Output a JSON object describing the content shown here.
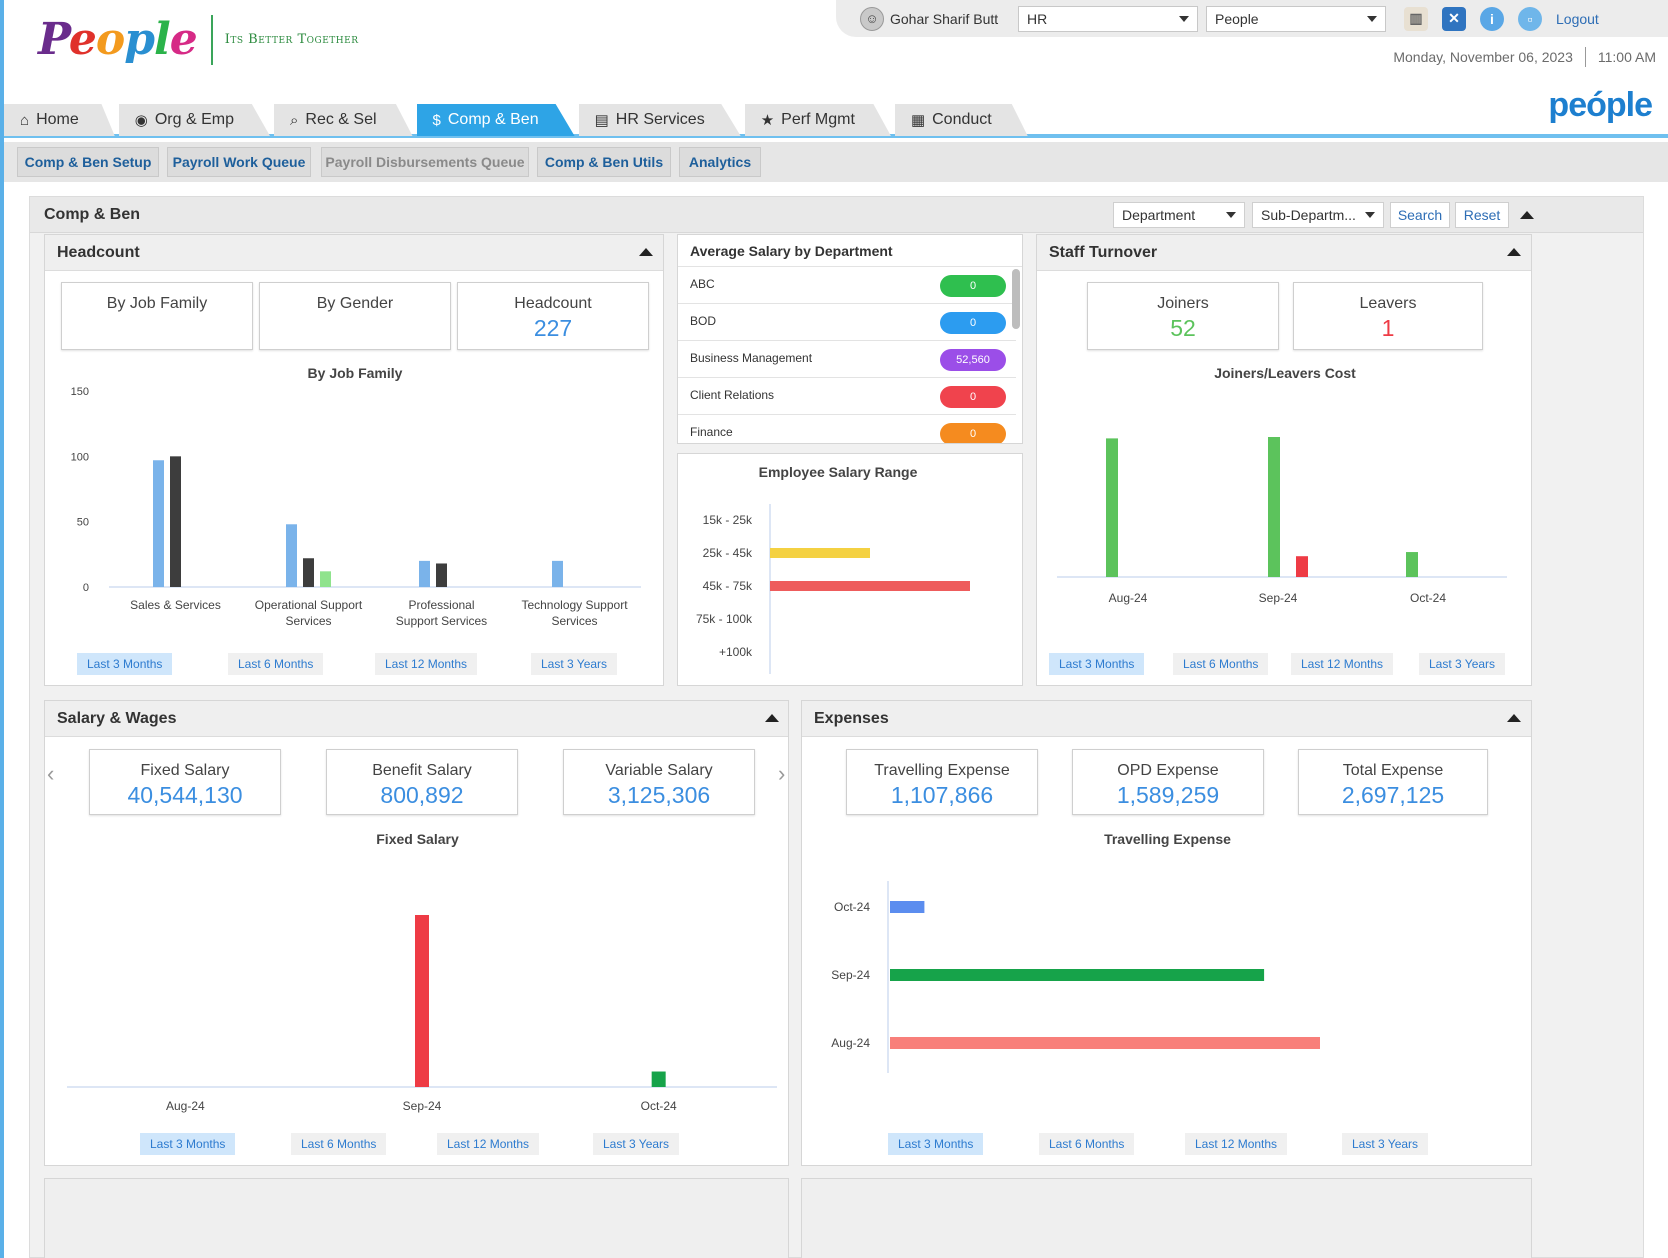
{
  "brand": {
    "logo_letters": [
      "P",
      "e",
      "o",
      "p",
      "l",
      "e"
    ],
    "tagline": "Its Better Together",
    "right_logo": "peóple"
  },
  "user": {
    "name": "Gohar Sharif Butt",
    "module_select": "HR",
    "app_select": "People",
    "logout": "Logout"
  },
  "header_icons": [
    "book-icon",
    "tools-icon",
    "info-icon",
    "lock-icon"
  ],
  "datetime": {
    "date": "Monday, November 06, 2023",
    "time": "11:00 AM"
  },
  "tabs": [
    {
      "label": "Home",
      "icon": "⌂"
    },
    {
      "label": "Org & Emp",
      "icon": "◉"
    },
    {
      "label": "Rec & Sel",
      "icon": "⌕"
    },
    {
      "label": "Comp & Ben",
      "icon": "$"
    },
    {
      "label": "HR Services",
      "icon": "▤"
    },
    {
      "label": "Perf Mgmt",
      "icon": "★"
    },
    {
      "label": "Conduct",
      "icon": "▦"
    }
  ],
  "subtabs": [
    "Comp & Ben Setup",
    "Payroll Work Queue",
    "Payroll Disbursements Queue",
    "Comp & Ben Utils",
    "Analytics"
  ],
  "main": {
    "title": "Comp & Ben",
    "department": "Department",
    "sub_department": "Sub-Departm...",
    "search": "Search",
    "reset": "Reset"
  },
  "periods": [
    "Last 3 Months",
    "Last 6 Months",
    "Last 12 Months",
    "Last 3 Years"
  ],
  "headcount": {
    "title": "Headcount",
    "tabs": [
      "By Job Family",
      "By Gender"
    ],
    "kpi_label": "Headcount",
    "kpi_value": "227",
    "chart_title": "By Job Family"
  },
  "avg_salary": {
    "title": "Average Salary by Department",
    "rows": [
      {
        "name": "ABC",
        "value": "0",
        "color": "#2fbf4f"
      },
      {
        "name": "BOD",
        "value": "0",
        "color": "#2c9cf0"
      },
      {
        "name": "Business Management",
        "value": "52,560",
        "color": "#9b4ee8"
      },
      {
        "name": "Client Relations",
        "value": "0",
        "color": "#f0434d"
      },
      {
        "name": "Finance",
        "value": "0",
        "color": "#f58b1f"
      }
    ]
  },
  "salary_range": {
    "title": "Employee Salary Range"
  },
  "turnover": {
    "title": "Staff Turnover",
    "joiners_label": "Joiners",
    "joiners_value": "52",
    "leavers_label": "Leavers",
    "leavers_value": "1",
    "chart_title": "Joiners/Leavers Cost"
  },
  "salary_wages": {
    "title": "Salary & Wages",
    "kpis": [
      {
        "label": "Fixed Salary",
        "value": "40,544,130"
      },
      {
        "label": "Benefit Salary",
        "value": "800,892"
      },
      {
        "label": "Variable Salary",
        "value": "3,125,306"
      }
    ],
    "chart_title": "Fixed Salary"
  },
  "expenses": {
    "title": "Expenses",
    "kpis": [
      {
        "label": "Travelling Expense",
        "value": "1,107,866"
      },
      {
        "label": "OPD Expense",
        "value": "1,589,259"
      },
      {
        "label": "Total Expense",
        "value": "2,697,125"
      }
    ],
    "chart_title": "Travelling Expense"
  },
  "chart_data": [
    {
      "type": "bar",
      "title": "By Job Family",
      "categories": [
        "Sales & Services",
        "Operational Support Services",
        "Professional Support Services",
        "Technology Support Services"
      ],
      "series": [
        {
          "values": [
            97,
            48,
            20,
            20
          ],
          "color": "#7ab3ea"
        },
        {
          "values": [
            100,
            22,
            18,
            0
          ],
          "color": "#3d3d3d"
        },
        {
          "values": [
            0,
            12,
            0,
            0
          ],
          "color": "#8fe38d"
        }
      ],
      "yticks": [
        0,
        50,
        100,
        150
      ],
      "ylim": [
        0,
        150
      ]
    },
    {
      "type": "bar",
      "orientation": "horizontal",
      "title": "Employee Salary Range",
      "categories": [
        "15k - 25k",
        "25k - 45k",
        "45k - 75k",
        "75k - 100k",
        "+100k"
      ],
      "values": [
        0,
        50,
        100,
        0,
        0
      ],
      "colors": [
        "#7ab3ea",
        "#f4d142",
        "#ee5c5c",
        "#7ab3ea",
        "#7ab3ea"
      ]
    },
    {
      "type": "bar",
      "title": "Joiners/Leavers Cost",
      "categories": [
        "Aug-24",
        "Sep-24",
        "Oct-24"
      ],
      "series": [
        {
          "values": [
            100,
            101,
            18
          ],
          "color": "#5cc35c"
        },
        {
          "values": [
            0,
            15,
            0
          ],
          "color": "#ee3b45"
        }
      ]
    },
    {
      "type": "bar",
      "title": "Fixed Salary",
      "categories": [
        "Aug-24",
        "Sep-24",
        "Oct-24"
      ],
      "values": [
        0,
        100,
        9
      ],
      "colors": [
        "#5b8def",
        "#ee3b45",
        "#16a34a"
      ]
    },
    {
      "type": "bar",
      "orientation": "horizontal",
      "title": "Travelling Expense",
      "categories": [
        "Oct-24",
        "Sep-24",
        "Aug-24"
      ],
      "values": [
        8,
        87,
        100
      ],
      "colors": [
        "#5b8def",
        "#16a34a",
        "#f87f7a"
      ]
    }
  ]
}
